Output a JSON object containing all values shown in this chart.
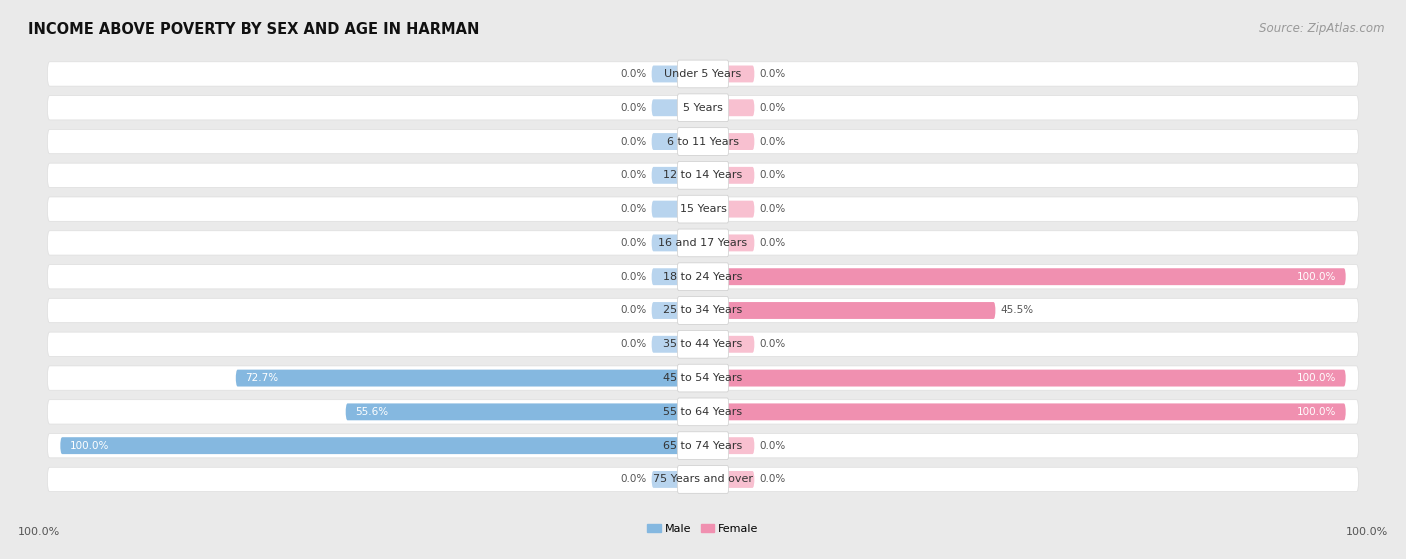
{
  "title": "INCOME ABOVE POVERTY BY SEX AND AGE IN HARMAN",
  "source": "Source: ZipAtlas.com",
  "categories": [
    "Under 5 Years",
    "5 Years",
    "6 to 11 Years",
    "12 to 14 Years",
    "15 Years",
    "16 and 17 Years",
    "18 to 24 Years",
    "25 to 34 Years",
    "35 to 44 Years",
    "45 to 54 Years",
    "55 to 64 Years",
    "65 to 74 Years",
    "75 Years and over"
  ],
  "male_values": [
    0.0,
    0.0,
    0.0,
    0.0,
    0.0,
    0.0,
    0.0,
    0.0,
    0.0,
    72.7,
    55.6,
    100.0,
    0.0
  ],
  "female_values": [
    0.0,
    0.0,
    0.0,
    0.0,
    0.0,
    0.0,
    100.0,
    45.5,
    0.0,
    100.0,
    100.0,
    0.0,
    0.0
  ],
  "male_color": "#85b8e0",
  "female_color": "#f090b0",
  "male_color_light": "#b8d4ee",
  "female_color_light": "#f8c0d0",
  "male_label": "Male",
  "female_label": "Female",
  "bg_color": "#eaeaea",
  "row_bg_color": "#f5f5f5",
  "row_bg_color2": "#ffffff",
  "label_box_color": "#ffffff",
  "xlim": 100,
  "stub_size": 8,
  "title_fontsize": 10.5,
  "source_fontsize": 8.5,
  "cat_fontsize": 8.0,
  "val_fontsize": 7.5,
  "bar_height": 0.5,
  "bottom_label": "100.0%"
}
